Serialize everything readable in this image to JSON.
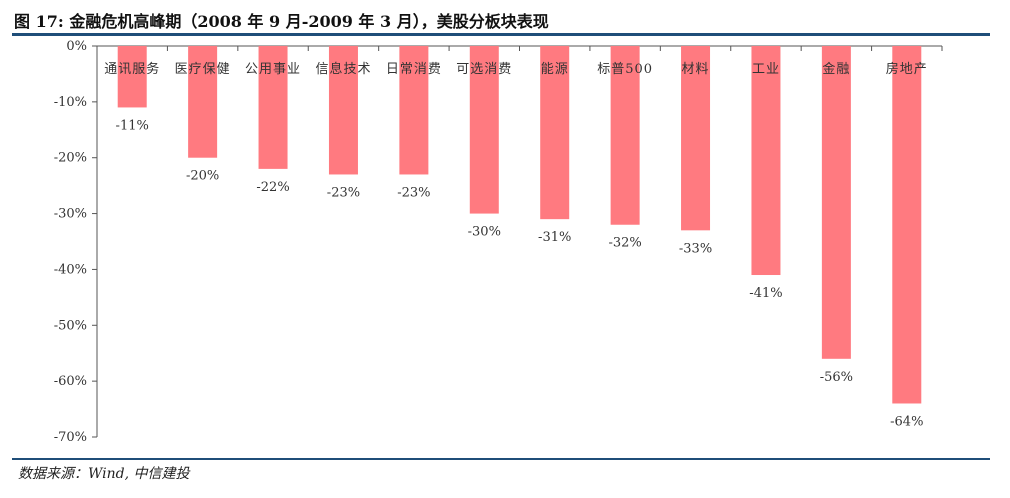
{
  "title": "图 17: 金融危机高峰期（2008 年 9 月-2009 年 3 月），美股分板块表现",
  "source": "数据来源：Wind,  中信建投",
  "colors": {
    "bar": "#ff7a80",
    "rule": "#1f4e79",
    "axis": "#555555"
  },
  "chart_data": {
    "type": "bar",
    "categories": [
      "通讯服务",
      "医疗保健",
      "公用事业",
      "信息技术",
      "日常消费",
      "可选消费",
      "能源",
      "标普500",
      "材料",
      "工业",
      "金融",
      "房地产"
    ],
    "values": [
      -11,
      -20,
      -22,
      -23,
      -23,
      -30,
      -31,
      -32,
      -33,
      -41,
      -56,
      -64
    ],
    "data_labels": [
      "-11%",
      "-20%",
      "-22%",
      "-23%",
      "-23%",
      "-30%",
      "-31%",
      "-32%",
      "-33%",
      "-41%",
      "-56%",
      "-64%"
    ],
    "yticks": [
      0,
      -10,
      -20,
      -30,
      -40,
      -50,
      -60,
      -70
    ],
    "ytick_labels": [
      "0%",
      "-10%",
      "-20%",
      "-30%",
      "-40%",
      "-50%",
      "-60%",
      "-70%"
    ],
    "ylim": [
      -70,
      0
    ],
    "title": "",
    "xlabel": "",
    "ylabel": "",
    "grid": false
  }
}
